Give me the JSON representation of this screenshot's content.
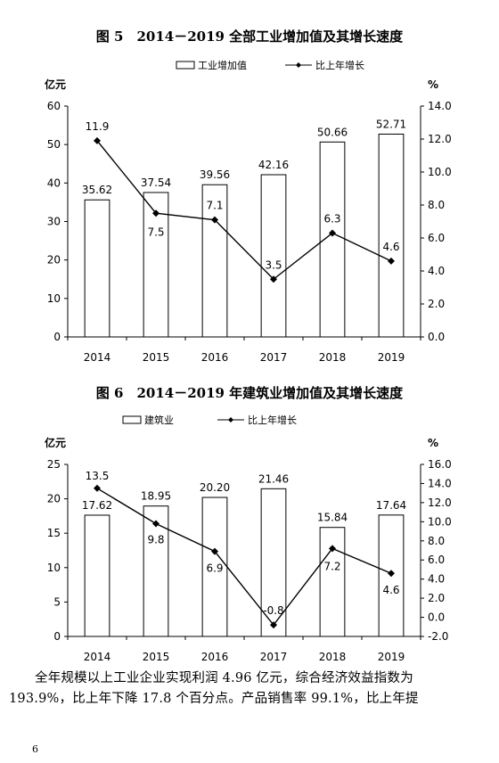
{
  "chart_data": [
    {
      "type": "bar",
      "title": "图 5　2014－2019 全部工业增加值及其增长速度",
      "categories": [
        "2014",
        "2015",
        "2016",
        "2017",
        "2018",
        "2019"
      ],
      "series": [
        {
          "name": "工业增加值",
          "type": "bar",
          "axis": "left",
          "values": [
            35.62,
            37.54,
            39.56,
            42.16,
            50.66,
            52.71
          ],
          "labels": [
            "35.62",
            "37.54",
            "39.56",
            "42.16",
            "50.66",
            "52.71"
          ]
        },
        {
          "name": "比上年增长",
          "type": "line",
          "axis": "right",
          "values": [
            11.9,
            7.5,
            7.1,
            3.5,
            6.3,
            4.6
          ],
          "labels": [
            "11.9",
            "7.5",
            "7.1",
            "3.5",
            "6.3",
            "4.6"
          ]
        }
      ],
      "ylabel": "亿元",
      "y2label": "%",
      "ylim": [
        0,
        60
      ],
      "y2lim": [
        0,
        14
      ],
      "yticks": [
        "0",
        "10",
        "20",
        "30",
        "40",
        "50",
        "60"
      ],
      "y2ticks": [
        "0.0",
        "2.0",
        "4.0",
        "6.0",
        "8.0",
        "10.0",
        "12.0",
        "14.0"
      ],
      "legend": "top-center",
      "grid": false
    },
    {
      "type": "bar",
      "title": "图 6　2014－2019 年建筑业增加值及其增长速度",
      "categories": [
        "2014",
        "2015",
        "2016",
        "2017",
        "2018",
        "2019"
      ],
      "series": [
        {
          "name": "建筑业",
          "type": "bar",
          "axis": "left",
          "values": [
            17.62,
            18.95,
            20.2,
            21.46,
            15.84,
            17.64
          ],
          "labels": [
            "17.62",
            "18.95",
            "20.20",
            "21.46",
            "15.84",
            "17.64"
          ]
        },
        {
          "name": "比上年增长",
          "type": "line",
          "axis": "right",
          "values": [
            13.5,
            9.8,
            6.9,
            -0.8,
            7.2,
            4.6
          ],
          "labels": [
            "13.5",
            "9.8",
            "6.9",
            "-0.8",
            "7.2",
            "4.6"
          ]
        }
      ],
      "ylabel": "亿元",
      "y2label": "%",
      "ylim": [
        0,
        25
      ],
      "y2lim": [
        -2,
        16
      ],
      "yticks": [
        "0",
        "5",
        "10",
        "15",
        "20",
        "25"
      ],
      "y2ticks": [
        "-2.0",
        "0.0",
        "2.0",
        "4.0",
        "6.0",
        "8.0",
        "10.0",
        "12.0",
        "14.0",
        "16.0"
      ],
      "legend": "top-center",
      "grid": false
    }
  ],
  "paragraph": {
    "line1": "全年规模以上工业企业实现利润 4.96 亿元，综合经济效益指数为",
    "line2": "193.9%，比上年下降 17.8 个百分点。产品销售率 99.1%，比上年提"
  },
  "page_number": "6"
}
